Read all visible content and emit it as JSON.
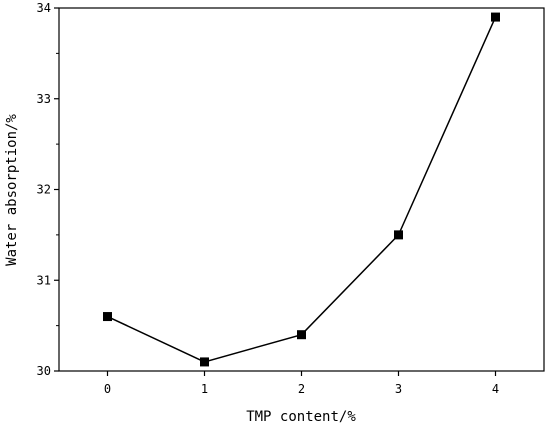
{
  "chart_data": {
    "type": "line",
    "title": "",
    "xlabel": "TMP content/%",
    "ylabel": "Water absorption/%",
    "x": [
      0,
      1,
      2,
      3,
      4
    ],
    "series": [
      {
        "values": [
          30.6,
          30.1,
          30.4,
          31.5,
          33.9
        ]
      }
    ],
    "xlim": [
      -0.5,
      4.5
    ],
    "ylim": [
      30,
      34
    ],
    "x_ticks": [
      "0",
      "1",
      "2",
      "3",
      "4"
    ],
    "y_ticks": [
      "30",
      "31",
      "32",
      "33",
      "34"
    ],
    "grid": false,
    "legend": "none",
    "colors": {
      "line": "#000000",
      "marker": "#000000",
      "axis": "#000000"
    }
  }
}
